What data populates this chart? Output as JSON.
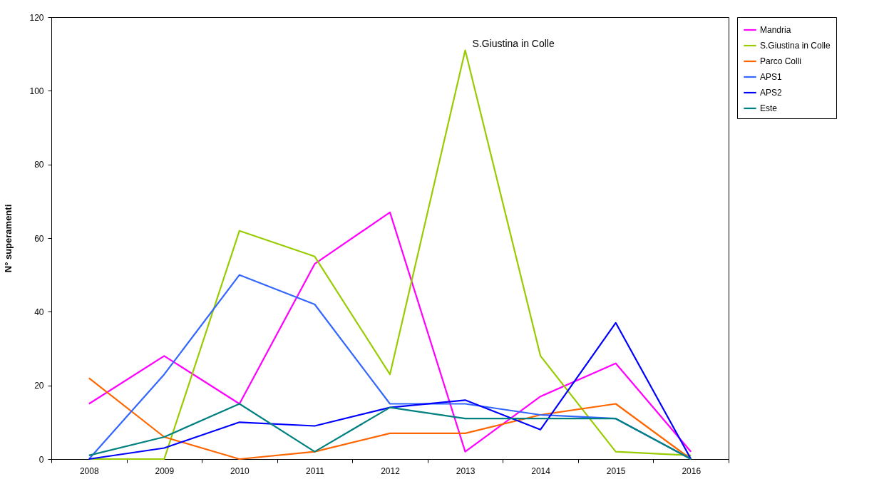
{
  "chart_data": {
    "type": "line",
    "ylabel": "N° superamenti",
    "categories": [
      "2008",
      "2009",
      "2010",
      "2011",
      "2012",
      "2013",
      "2014",
      "2015",
      "2016"
    ],
    "series": [
      {
        "name": "Mandria",
        "color": "#ff00ff",
        "values": [
          15,
          28,
          15,
          53,
          67,
          2,
          17,
          26,
          2
        ]
      },
      {
        "name": "S.Giustina in Colle",
        "color": "#99cc00",
        "values": [
          0,
          0,
          62,
          55,
          23,
          111,
          28,
          2,
          1
        ]
      },
      {
        "name": "Parco Colli",
        "color": "#ff6600",
        "values": [
          22,
          6,
          0,
          2,
          7,
          7,
          12,
          15,
          0
        ]
      },
      {
        "name": "APS1",
        "color": "#3366ff",
        "values": [
          0,
          23,
          50,
          42,
          15,
          15,
          12,
          11,
          0
        ]
      },
      {
        "name": "APS2",
        "color": "#0000ff",
        "values": [
          0,
          3,
          10,
          9,
          14,
          16,
          8,
          37,
          0
        ]
      },
      {
        "name": "Este",
        "color": "#008080",
        "values": [
          1,
          6,
          15,
          2,
          14,
          11,
          11,
          11,
          0
        ]
      }
    ],
    "annotations": [
      {
        "text": "S.Giustina in Colle",
        "x": "2013",
        "y": 111
      }
    ],
    "ylim": [
      0,
      120
    ],
    "yticks": [
      0,
      20,
      40,
      60,
      80,
      100,
      120
    ],
    "grid": false,
    "legend": "right",
    "marker": "none",
    "line_style": "solid"
  }
}
